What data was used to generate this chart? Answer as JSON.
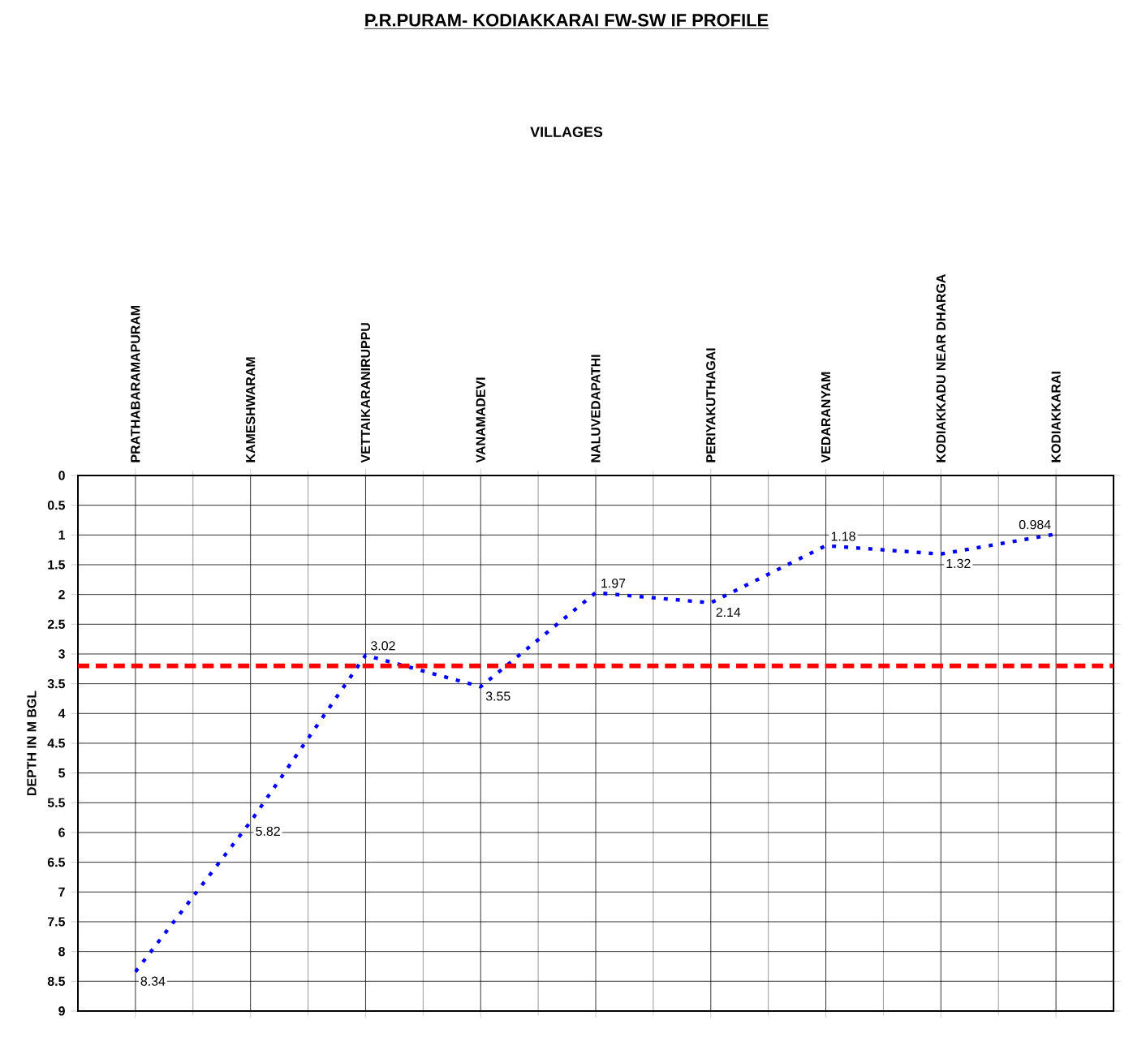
{
  "chart_data": {
    "type": "line",
    "title": "P.R.PURAM- KODIAKKARAI FW-SW IF PROFILE",
    "annotations": [
      "VILLAGES"
    ],
    "ylabel": "DEPTH IN M BGL",
    "categories": [
      "PRATHABARAMAPURAM",
      "KAMESHWARAM",
      "VETTAIKARANIRUPPU",
      "VANAMADEVI",
      "NALUVEDAPATHI",
      "PERIYAKUTHAGAI",
      "VEDARANYAM",
      "KODIAKKADU NEAR DHARGA",
      "KODIAKKARAI"
    ],
    "series": [
      {
        "color": "#0000ff",
        "values": [
          8.34,
          5.82,
          3.02,
          3.55,
          1.97,
          2.14,
          1.18,
          1.32,
          0.984
        ]
      }
    ],
    "ylim": [
      9,
      0
    ],
    "yticks": [
      0,
      0.5,
      1,
      1.5,
      2,
      2.5,
      3,
      3.5,
      4,
      4.5,
      5,
      5.5,
      6,
      6.5,
      7,
      7.5,
      8,
      8.5,
      9
    ],
    "ref_lines": [
      {
        "axis": "y",
        "value": 3.2,
        "color": "#ff0000",
        "line_style": "dashed"
      }
    ],
    "data_labels": true,
    "grid": true,
    "marker": "none",
    "line_style": "dotted"
  }
}
